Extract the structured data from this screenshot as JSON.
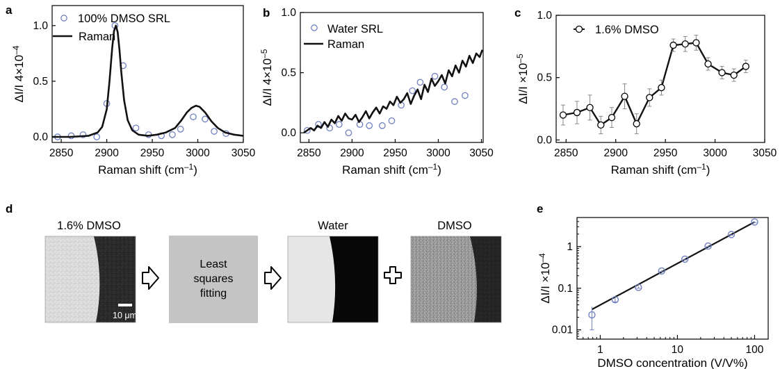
{
  "chart_data": [
    {
      "panel": "a",
      "type": "line",
      "xlabel_pre": "Raman shift (cm",
      "xlabel_sup": "–1",
      "xlabel_post": ")",
      "ylabel": "ΔI/I 4×10",
      "ylabel_sup": "–4",
      "xlim": [
        2840,
        3050
      ],
      "ylim": [
        -0.05,
        1.18
      ],
      "xticks": [
        2850,
        2900,
        2950,
        3000,
        3050
      ],
      "yticks": [
        "0.0",
        "0.5",
        "1.0"
      ],
      "ytick_values": [
        0.0,
        0.5,
        1.0
      ],
      "series": [
        {
          "name": "100% DMSO SRL",
          "style": "markers",
          "x": [
            2846,
            2861,
            2874,
            2889,
            2900,
            2909,
            2918,
            2932,
            2946,
            2960,
            2972,
            2981,
            2995,
            3008,
            3018,
            3031
          ],
          "y": [
            0.0,
            0.01,
            0.02,
            0.0,
            0.3,
            1.0,
            0.64,
            0.08,
            0.02,
            0.01,
            0.02,
            0.07,
            0.18,
            0.16,
            0.05,
            0.03
          ]
        },
        {
          "name": "Raman",
          "style": "line",
          "x": [
            2840,
            2860,
            2880,
            2890,
            2895,
            2900,
            2903,
            2906,
            2908,
            2910,
            2912,
            2914,
            2916,
            2919,
            2923,
            2928,
            2935,
            2945,
            2955,
            2965,
            2975,
            2982,
            2988,
            2993,
            2998,
            3002,
            3008,
            3015,
            3022,
            3030,
            3040,
            3050
          ],
          "y": [
            0.0,
            0.0,
            0.01,
            0.04,
            0.09,
            0.25,
            0.5,
            0.8,
            0.95,
            1.0,
            0.94,
            0.78,
            0.58,
            0.33,
            0.15,
            0.06,
            0.02,
            0.01,
            0.02,
            0.04,
            0.08,
            0.15,
            0.22,
            0.26,
            0.28,
            0.27,
            0.22,
            0.14,
            0.08,
            0.04,
            0.02,
            0.01
          ]
        }
      ]
    },
    {
      "panel": "b",
      "type": "line",
      "xlabel_pre": "Raman shift (cm",
      "xlabel_sup": "–1",
      "xlabel_post": ")",
      "ylabel": "ΔI/I 4×10",
      "ylabel_sup": "–5",
      "xlim": [
        2840,
        3052
      ],
      "ylim": [
        -0.08,
        1.0
      ],
      "xticks": [
        2850,
        2900,
        2950,
        3000,
        3050
      ],
      "yticks": [
        "0.0",
        "0.5",
        "1.0"
      ],
      "ytick_values": [
        0.0,
        0.5,
        1.0
      ],
      "series": [
        {
          "name": "Water SRL",
          "style": "markers",
          "x": [
            2848,
            2861,
            2874,
            2885,
            2896,
            2909,
            2920,
            2935,
            2946,
            2957,
            2970,
            2979,
            2996,
            3007,
            3019,
            3031
          ],
          "y": [
            0.02,
            0.07,
            0.04,
            0.07,
            0.0,
            0.07,
            0.06,
            0.06,
            0.1,
            0.23,
            0.35,
            0.42,
            0.47,
            0.38,
            0.26,
            0.31
          ]
        },
        {
          "name": "Raman",
          "style": "line",
          "x": [
            2844,
            2848,
            2852,
            2856,
            2860,
            2864,
            2868,
            2872,
            2876,
            2880,
            2884,
            2888,
            2892,
            2896,
            2900,
            2904,
            2908,
            2912,
            2916,
            2920,
            2924,
            2928,
            2932,
            2936,
            2940,
            2944,
            2948,
            2952,
            2956,
            2960,
            2964,
            2968,
            2972,
            2976,
            2980,
            2984,
            2988,
            2992,
            2996,
            3000,
            3004,
            3008,
            3012,
            3016,
            3020,
            3024,
            3028,
            3032,
            3036,
            3040,
            3044,
            3048,
            3051
          ],
          "y": [
            0.0,
            0.02,
            0.04,
            0.02,
            0.06,
            0.04,
            0.09,
            0.05,
            0.11,
            0.08,
            0.14,
            0.1,
            0.16,
            0.12,
            0.11,
            0.15,
            0.09,
            0.13,
            0.18,
            0.12,
            0.17,
            0.21,
            0.16,
            0.22,
            0.2,
            0.26,
            0.23,
            0.3,
            0.25,
            0.28,
            0.33,
            0.24,
            0.31,
            0.36,
            0.28,
            0.4,
            0.34,
            0.45,
            0.39,
            0.43,
            0.48,
            0.41,
            0.52,
            0.47,
            0.56,
            0.5,
            0.6,
            0.55,
            0.64,
            0.58,
            0.66,
            0.63,
            0.69
          ]
        }
      ]
    },
    {
      "panel": "c",
      "type": "line",
      "xlabel_pre": "Raman shift (cm",
      "xlabel_sup": "–1",
      "xlabel_post": ")",
      "ylabel": "ΔI/I ×10",
      "ylabel_sup": "–5",
      "xlim": [
        2840,
        3050
      ],
      "ylim": [
        -0.02,
        1.0
      ],
      "xticks": [
        2850,
        2900,
        2950,
        3000,
        3050
      ],
      "yticks": [
        "0.0",
        "0.5",
        "1.0"
      ],
      "ytick_values": [
        0.0,
        0.5,
        1.0
      ],
      "series": [
        {
          "name": "1.6% DMSO",
          "style": "line-markers",
          "x": [
            2847,
            2861,
            2874,
            2885,
            2896,
            2909,
            2921,
            2934,
            2946,
            2958,
            2970,
            2981,
            2993,
            3007,
            3019,
            3031
          ],
          "y": [
            0.2,
            0.22,
            0.26,
            0.12,
            0.18,
            0.35,
            0.13,
            0.34,
            0.42,
            0.76,
            0.77,
            0.78,
            0.61,
            0.54,
            0.52,
            0.59
          ],
          "err": [
            0.08,
            0.09,
            0.1,
            0.07,
            0.08,
            0.1,
            0.08,
            0.07,
            0.06,
            0.05,
            0.06,
            0.06,
            0.05,
            0.05,
            0.05,
            0.05
          ]
        }
      ]
    },
    {
      "panel": "e",
      "type": "scatter",
      "xscale": "log",
      "yscale": "log",
      "xlabel": "DMSO concentration (V/V%)",
      "ylabel": "ΔI/I ×10",
      "ylabel_sup": "–4",
      "xlim": [
        0.5,
        150
      ],
      "ylim": [
        0.006,
        5
      ],
      "xticks": [
        "1",
        "10",
        "100"
      ],
      "xtick_values": [
        1,
        10,
        100
      ],
      "yticks": [
        "0.01",
        "0.1",
        "1"
      ],
      "ytick_values": [
        0.01,
        0.1,
        1
      ],
      "series": [
        {
          "style": "markers",
          "x": [
            0.78,
            1.56,
            3.125,
            6.25,
            12.5,
            25,
            50,
            100
          ],
          "y": [
            0.023,
            0.053,
            0.105,
            0.26,
            0.5,
            1.03,
            1.95,
            3.9
          ],
          "err": [
            0.013,
            0.006,
            0.005,
            0.01,
            0.02,
            0.04,
            0.06,
            0.1
          ]
        },
        {
          "style": "fit-line",
          "x": [
            0.78,
            100
          ],
          "y": [
            0.031,
            3.9
          ]
        }
      ]
    }
  ],
  "panels": {
    "a": "a",
    "b": "b",
    "c": "c",
    "d": "d",
    "e": "e"
  },
  "panel_d": {
    "input_label": "1.6% DMSO",
    "scale_bar": "10 μm",
    "process_lines": [
      "Least",
      "squares",
      "fitting"
    ],
    "output_water": "Water",
    "output_dmso": "DMSO"
  },
  "colors": {
    "marker": "#7080c0",
    "line": "#111111",
    "error_c": "#888888",
    "process_box": "#c4c4c4"
  }
}
